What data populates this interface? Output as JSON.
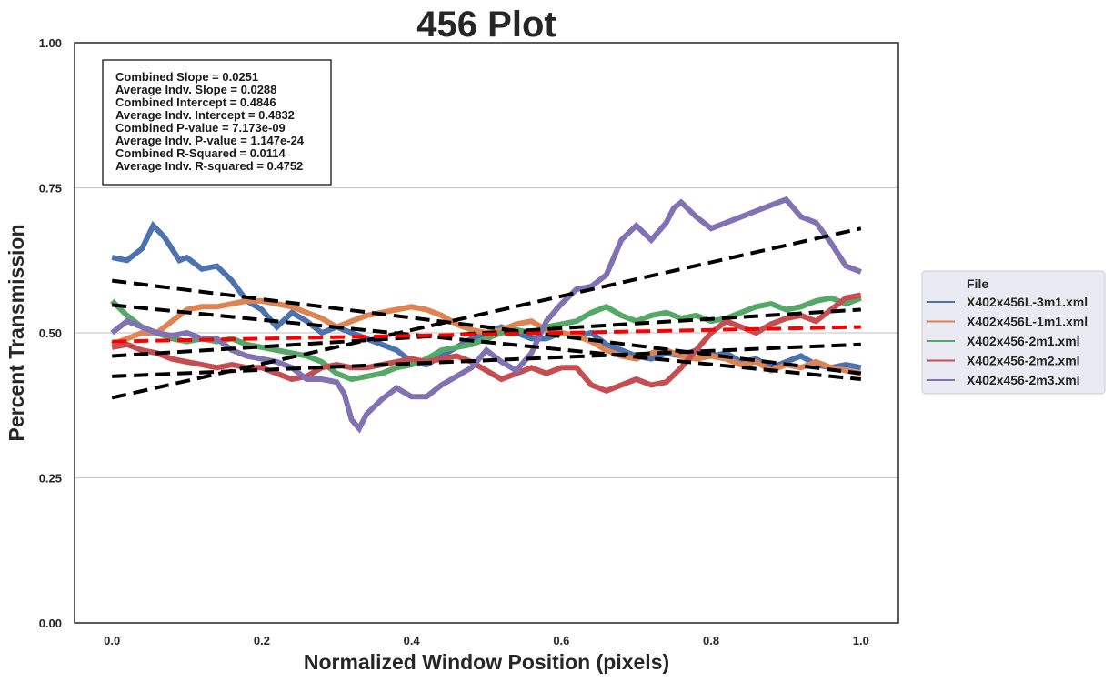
{
  "chart_data": {
    "type": "line",
    "title": "456 Plot",
    "xlabel": "Normalized Window Position (pixels)",
    "ylabel": "Percent Transmission",
    "xlim": [
      -0.05,
      1.05
    ],
    "ylim": [
      0.0,
      1.0
    ],
    "x_ticks": [
      "0.0",
      "0.2",
      "0.4",
      "0.6",
      "0.8",
      "1.0"
    ],
    "y_ticks": [
      "0.00",
      "0.25",
      "0.50",
      "0.75",
      "1.00"
    ],
    "grid": "horizontal",
    "legend": {
      "title": "File",
      "placement": "right-outside"
    },
    "stats_box": [
      "Combined Slope = 0.0251",
      "Average Indv. Slope = 0.0288",
      "Combined Intercept = 0.4846",
      "Average Indv. Intercept = 0.4832",
      "Combined P-value = 7.173e-09",
      "Average Indv. P-value = 1.147e-24",
      "Combined R-Squared = 0.0114",
      "Average Indv. R-squared = 0.4752"
    ],
    "series": [
      {
        "name": "X402x456L-3m1.xml",
        "color": "#4c72b0",
        "x": [
          0.0,
          0.02,
          0.04,
          0.055,
          0.07,
          0.09,
          0.1,
          0.12,
          0.14,
          0.16,
          0.18,
          0.2,
          0.22,
          0.24,
          0.26,
          0.28,
          0.3,
          0.32,
          0.34,
          0.36,
          0.38,
          0.4,
          0.42,
          0.44,
          0.46,
          0.48,
          0.5,
          0.52,
          0.54,
          0.56,
          0.58,
          0.6,
          0.62,
          0.64,
          0.66,
          0.68,
          0.7,
          0.72,
          0.74,
          0.76,
          0.78,
          0.8,
          0.82,
          0.84,
          0.86,
          0.88,
          0.9,
          0.92,
          0.94,
          0.96,
          0.98,
          1.0
        ],
        "y": [
          0.63,
          0.625,
          0.645,
          0.685,
          0.665,
          0.625,
          0.63,
          0.61,
          0.615,
          0.59,
          0.555,
          0.54,
          0.51,
          0.535,
          0.52,
          0.5,
          0.51,
          0.5,
          0.49,
          0.48,
          0.47,
          0.45,
          0.445,
          0.46,
          0.475,
          0.49,
          0.5,
          0.51,
          0.5,
          0.49,
          0.49,
          0.5,
          0.495,
          0.5,
          0.48,
          0.47,
          0.46,
          0.455,
          0.465,
          0.46,
          0.47,
          0.46,
          0.465,
          0.45,
          0.455,
          0.44,
          0.45,
          0.46,
          0.445,
          0.44,
          0.445,
          0.44
        ]
      },
      {
        "name": "X402x456L-1m1.xml",
        "color": "#dd8452",
        "x": [
          0.0,
          0.02,
          0.04,
          0.06,
          0.08,
          0.1,
          0.12,
          0.14,
          0.16,
          0.18,
          0.2,
          0.22,
          0.24,
          0.26,
          0.28,
          0.3,
          0.32,
          0.34,
          0.36,
          0.38,
          0.4,
          0.42,
          0.44,
          0.46,
          0.48,
          0.5,
          0.52,
          0.54,
          0.56,
          0.58,
          0.6,
          0.62,
          0.64,
          0.66,
          0.68,
          0.7,
          0.72,
          0.74,
          0.76,
          0.78,
          0.8,
          0.82,
          0.84,
          0.86,
          0.88,
          0.9,
          0.92,
          0.94,
          0.96,
          0.98,
          1.0
        ],
        "y": [
          0.48,
          0.49,
          0.5,
          0.5,
          0.52,
          0.54,
          0.545,
          0.545,
          0.55,
          0.555,
          0.555,
          0.55,
          0.545,
          0.535,
          0.525,
          0.51,
          0.52,
          0.53,
          0.535,
          0.54,
          0.545,
          0.54,
          0.53,
          0.515,
          0.505,
          0.5,
          0.505,
          0.515,
          0.52,
          0.505,
          0.5,
          0.495,
          0.485,
          0.47,
          0.46,
          0.455,
          0.465,
          0.47,
          0.46,
          0.455,
          0.46,
          0.455,
          0.445,
          0.45,
          0.435,
          0.445,
          0.44,
          0.45,
          0.44,
          0.435,
          0.43
        ]
      },
      {
        "name": "X402x456-2m1.xml",
        "color": "#55a868",
        "x": [
          0.0,
          0.02,
          0.04,
          0.06,
          0.08,
          0.1,
          0.12,
          0.14,
          0.16,
          0.18,
          0.2,
          0.22,
          0.24,
          0.26,
          0.28,
          0.3,
          0.32,
          0.34,
          0.36,
          0.38,
          0.4,
          0.42,
          0.44,
          0.46,
          0.48,
          0.5,
          0.52,
          0.54,
          0.56,
          0.58,
          0.6,
          0.62,
          0.64,
          0.66,
          0.68,
          0.7,
          0.72,
          0.74,
          0.76,
          0.78,
          0.8,
          0.82,
          0.84,
          0.86,
          0.88,
          0.9,
          0.92,
          0.94,
          0.96,
          0.98,
          1.0
        ],
        "y": [
          0.555,
          0.53,
          0.51,
          0.5,
          0.49,
          0.485,
          0.49,
          0.485,
          0.49,
          0.48,
          0.475,
          0.47,
          0.465,
          0.46,
          0.45,
          0.43,
          0.42,
          0.425,
          0.43,
          0.44,
          0.445,
          0.455,
          0.47,
          0.475,
          0.48,
          0.49,
          0.5,
          0.505,
          0.5,
          0.51,
          0.515,
          0.52,
          0.535,
          0.545,
          0.53,
          0.52,
          0.53,
          0.535,
          0.525,
          0.53,
          0.52,
          0.525,
          0.535,
          0.545,
          0.55,
          0.54,
          0.545,
          0.555,
          0.56,
          0.55,
          0.56
        ]
      },
      {
        "name": "X402x456-2m2.xml",
        "color": "#c44e52",
        "x": [
          0.0,
          0.02,
          0.04,
          0.06,
          0.08,
          0.1,
          0.12,
          0.14,
          0.16,
          0.18,
          0.2,
          0.22,
          0.24,
          0.26,
          0.28,
          0.3,
          0.32,
          0.34,
          0.36,
          0.38,
          0.4,
          0.42,
          0.44,
          0.46,
          0.48,
          0.5,
          0.52,
          0.54,
          0.56,
          0.58,
          0.6,
          0.62,
          0.64,
          0.66,
          0.68,
          0.7,
          0.72,
          0.74,
          0.76,
          0.78,
          0.8,
          0.82,
          0.84,
          0.86,
          0.88,
          0.9,
          0.92,
          0.94,
          0.96,
          0.98,
          1.0
        ],
        "y": [
          0.475,
          0.48,
          0.47,
          0.465,
          0.455,
          0.45,
          0.445,
          0.44,
          0.445,
          0.44,
          0.44,
          0.43,
          0.42,
          0.425,
          0.44,
          0.445,
          0.44,
          0.44,
          0.445,
          0.45,
          0.455,
          0.45,
          0.455,
          0.46,
          0.45,
          0.435,
          0.42,
          0.43,
          0.44,
          0.43,
          0.44,
          0.44,
          0.41,
          0.4,
          0.41,
          0.42,
          0.41,
          0.415,
          0.44,
          0.47,
          0.5,
          0.52,
          0.51,
          0.5,
          0.515,
          0.525,
          0.53,
          0.52,
          0.54,
          0.56,
          0.565
        ]
      },
      {
        "name": "X402x456-2m3.xml",
        "color": "#8172b3",
        "x": [
          0.0,
          0.02,
          0.04,
          0.06,
          0.08,
          0.1,
          0.12,
          0.14,
          0.16,
          0.18,
          0.2,
          0.22,
          0.24,
          0.26,
          0.28,
          0.3,
          0.31,
          0.32,
          0.33,
          0.34,
          0.36,
          0.38,
          0.4,
          0.42,
          0.44,
          0.46,
          0.48,
          0.5,
          0.52,
          0.54,
          0.56,
          0.58,
          0.6,
          0.62,
          0.64,
          0.66,
          0.68,
          0.7,
          0.72,
          0.74,
          0.75,
          0.76,
          0.78,
          0.8,
          0.82,
          0.84,
          0.86,
          0.88,
          0.9,
          0.92,
          0.94,
          0.96,
          0.98,
          1.0
        ],
        "y": [
          0.5,
          0.52,
          0.51,
          0.5,
          0.495,
          0.5,
          0.49,
          0.49,
          0.47,
          0.46,
          0.455,
          0.45,
          0.44,
          0.42,
          0.42,
          0.415,
          0.395,
          0.35,
          0.335,
          0.36,
          0.385,
          0.405,
          0.39,
          0.39,
          0.41,
          0.425,
          0.44,
          0.47,
          0.45,
          0.435,
          0.465,
          0.52,
          0.55,
          0.575,
          0.58,
          0.6,
          0.66,
          0.685,
          0.66,
          0.69,
          0.715,
          0.725,
          0.7,
          0.68,
          0.69,
          0.7,
          0.71,
          0.72,
          0.73,
          0.7,
          0.69,
          0.655,
          0.615,
          0.605
        ]
      }
    ],
    "regression_lines": [
      {
        "label": "combined",
        "color": "#ff0000",
        "x": [
          0.0,
          1.0
        ],
        "y": [
          0.485,
          0.51
        ]
      },
      {
        "label": "individual",
        "color": "#000000",
        "x": [
          0.0,
          1.0
        ],
        "y": [
          0.59,
          0.43
        ]
      },
      {
        "label": "individual",
        "color": "#000000",
        "x": [
          0.0,
          1.0
        ],
        "y": [
          0.548,
          0.42
        ]
      },
      {
        "label": "individual",
        "color": "#000000",
        "x": [
          0.0,
          1.0
        ],
        "y": [
          0.46,
          0.54
        ]
      },
      {
        "label": "individual",
        "color": "#000000",
        "x": [
          0.0,
          1.0
        ],
        "y": [
          0.425,
          0.48
        ]
      },
      {
        "label": "individual",
        "color": "#000000",
        "x": [
          0.0,
          1.0
        ],
        "y": [
          0.388,
          0.68
        ]
      }
    ]
  }
}
